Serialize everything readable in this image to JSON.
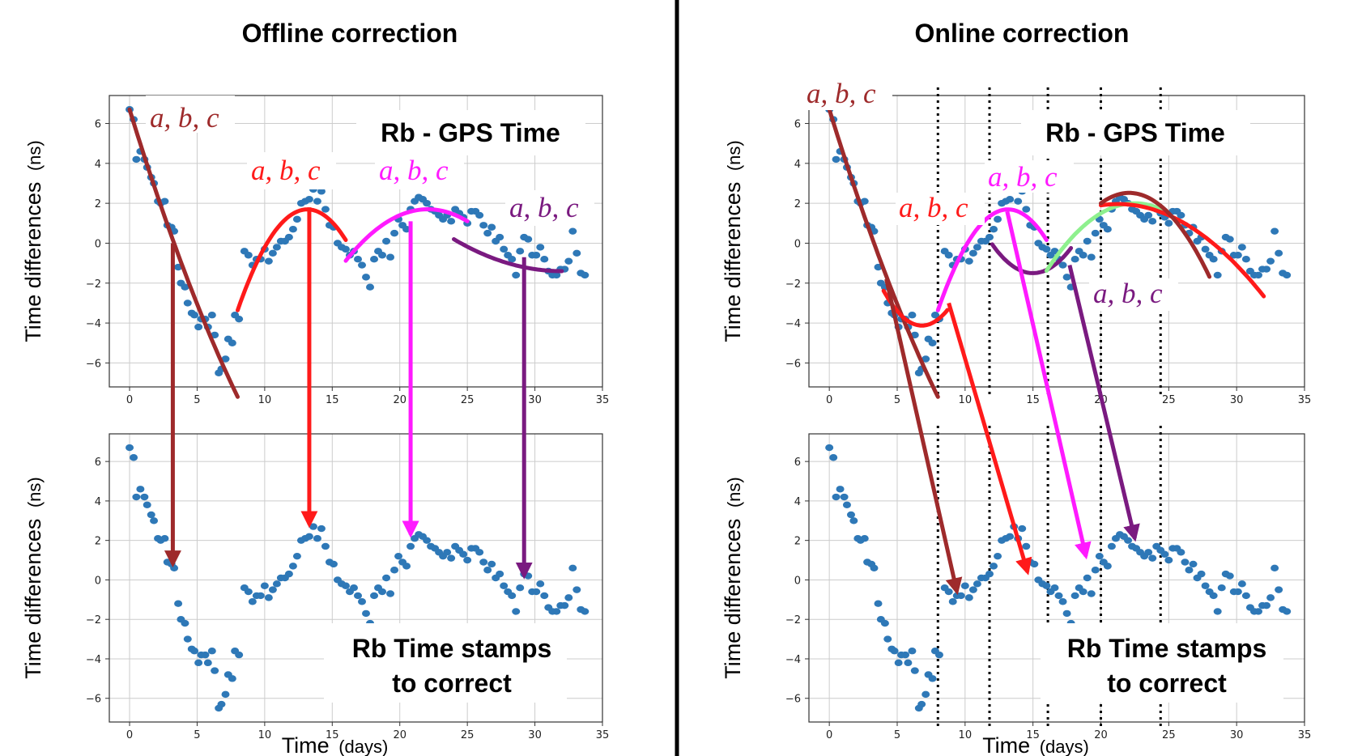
{
  "titles": {
    "left": "Offline correction",
    "right": "Online correction"
  },
  "labels": {
    "ylabel": "Time differences",
    "yunit": "(ns)",
    "xlabel": "Time",
    "xunit": "(days)",
    "top_box": "Rb - GPS Time",
    "bottom_box_line1": "Rb Time stamps",
    "bottom_box_line2": "to correct",
    "param": "a, b, c"
  },
  "colors": {
    "points": "#2e78b7",
    "brown": "#9e2a2b",
    "red": "#ff1a1a",
    "magenta": "#ff1aff",
    "purple": "#7a1a80",
    "lightgreen": "#8ef08e",
    "divider": "#000000"
  },
  "chart_data": [
    {
      "type": "scatter",
      "title": "Offline correction — Rb - GPS Time",
      "xlabel": "Time (days)",
      "ylabel": "Time differences (ns)",
      "xlim": [
        -1.5,
        35
      ],
      "ylim": [
        -7.2,
        7.4
      ],
      "xticks": [
        0,
        5,
        10,
        15,
        20,
        25,
        30,
        35
      ],
      "yticks": [
        -6,
        -4,
        -2,
        0,
        2,
        4,
        6
      ],
      "grid": true,
      "series": [
        {
          "name": "Rb - GPS Time",
          "x": [
            0,
            0.3,
            0.5,
            0.8,
            1.1,
            1.3,
            1.6,
            1.8,
            2.1,
            2.3,
            2.6,
            2.8,
            3.1,
            3.3,
            3.6,
            3.8,
            4.1,
            4.3,
            4.6,
            4.8,
            5.1,
            5.3,
            5.6,
            5.8,
            6.1,
            6.3,
            6.6,
            6.8,
            7.1,
            7.3,
            7.6,
            7.8,
            8.1,
            8.5,
            8.8,
            9.1,
            9.4,
            9.7,
            10,
            10.3,
            10.6,
            10.9,
            11.2,
            11.5,
            11.8,
            12.1,
            12.4,
            12.7,
            13,
            13.3,
            13.6,
            13.9,
            14.2,
            14.5,
            14.8,
            15.1,
            15.4,
            15.7,
            16,
            16.3,
            16.6,
            16.9,
            17.2,
            17.5,
            17.8,
            18.1,
            18.4,
            18.7,
            19,
            19.3,
            19.6,
            19.9,
            20.2,
            20.5,
            20.8,
            21.1,
            21.4,
            21.7,
            22,
            22.3,
            22.6,
            22.9,
            23.2,
            23.5,
            23.8,
            24.1,
            24.4,
            24.7,
            25,
            25.3,
            25.6,
            25.9,
            26.2,
            26.5,
            26.8,
            27.1,
            27.4,
            27.7,
            28,
            28.3,
            28.6,
            28.9,
            29.2,
            29.5,
            29.8,
            30.1,
            30.4,
            30.7,
            31,
            31.3,
            31.6,
            31.9,
            32.2,
            32.5,
            32.8,
            33.1,
            33.4,
            33.7
          ],
          "y": [
            6.7,
            6.2,
            4.2,
            4.6,
            4.2,
            3.8,
            3.3,
            3,
            2.1,
            2,
            2.1,
            0.9,
            0.8,
            0.6,
            -1.2,
            -2,
            -2.2,
            -3,
            -3.5,
            -3.6,
            -4.2,
            -3.8,
            -3.8,
            -4.2,
            -3.6,
            -4.6,
            -6.5,
            -6.3,
            -5.8,
            -4.8,
            -5,
            -3.6,
            -3.8,
            -0.4,
            -0.6,
            -1.1,
            -0.8,
            -0.8,
            -0.3,
            -0.9,
            -0.5,
            -0.2,
            0.1,
            0.1,
            0.3,
            0.7,
            1.2,
            2,
            2.1,
            2.2,
            2.7,
            2.1,
            2.6,
            1.7,
            0.9,
            0.8,
            0.0,
            -0.2,
            -0.3,
            -0.6,
            -0.4,
            -0.8,
            -1.1,
            -1.7,
            -2.2,
            -0.8,
            -0.4,
            -0.6,
            0.1,
            -0.7,
            0.5,
            1.2,
            0.9,
            0.7,
            1.7,
            2.1,
            2.3,
            2.2,
            2.0,
            1.7,
            1.6,
            1.4,
            1.2,
            1.4,
            1.1,
            1.7,
            1.5,
            1.3,
            1.0,
            1.6,
            1.6,
            1.4,
            0.9,
            0.5,
            0.8,
            0.1,
            0.3,
            -0.3,
            -0.6,
            -0.8,
            -1.6,
            -0.4,
            0.3,
            0.2,
            -0.6,
            -0.6,
            -0.2,
            -0.8,
            -1.4,
            -1.6,
            -1.6,
            -1.3,
            -1.3,
            -0.9,
            0.6,
            -0.5,
            -1.5,
            -1.6
          ]
        }
      ],
      "fits": [
        {
          "name": "brown fit",
          "color": "brown",
          "x": [
            0,
            8
          ],
          "coeffs": [
            0.05,
            -2.2,
            6.7
          ]
        },
        {
          "name": "red fit",
          "color": "red",
          "x": [
            8,
            16
          ],
          "coeffs": [
            -0.19,
            5.0,
            -31.2
          ]
        },
        {
          "name": "magenta fit",
          "color": "magenta",
          "x": [
            16,
            25
          ],
          "coeffs": [
            -0.07,
            3.09,
            -32.4
          ]
        },
        {
          "name": "purple fit",
          "color": "purple",
          "x": [
            24,
            32
          ],
          "coeffs": [
            0.025,
            -1.6,
            24.2
          ]
        }
      ]
    },
    {
      "type": "scatter",
      "title": "Offline correction — Rb Time stamps to correct",
      "xlabel": "Time (days)",
      "ylabel": "Time differences (ns)",
      "xlim": [
        -1.5,
        35
      ],
      "ylim": [
        -7.2,
        7.4
      ],
      "xticks": [
        0,
        5,
        10,
        15,
        20,
        25,
        30,
        35
      ],
      "yticks": [
        -6,
        -4,
        -2,
        0,
        2,
        4,
        6
      ],
      "grid": true,
      "series": [
        {
          "name": "Rb Time stamps",
          "same_as": "Rb - GPS Time"
        }
      ]
    },
    {
      "type": "scatter",
      "title": "Online correction — Rb - GPS Time",
      "xlabel": "Time (days)",
      "ylabel": "Time differences (ns)",
      "xlim": [
        -1.5,
        35
      ],
      "ylim": [
        -7.2,
        7.4
      ],
      "xticks": [
        0,
        5,
        10,
        15,
        20,
        25,
        30,
        35
      ],
      "yticks": [
        -6,
        -4,
        -2,
        0,
        2,
        4,
        6
      ],
      "grid": true,
      "vlines": [
        8,
        11.8,
        16.1,
        20,
        24.4
      ],
      "series": [
        {
          "name": "Rb - GPS Time",
          "same_as": "Rb - GPS Time"
        }
      ],
      "fits": [
        {
          "name": "brown fit",
          "color": "brown",
          "x": [
            0,
            8
          ],
          "coeffs": [
            0.05,
            -2.2,
            6.7
          ]
        },
        {
          "name": "red fit 1",
          "color": "red",
          "x": [
            4,
            8.7
          ],
          "coeffs": [
            0.22,
            -3.0,
            6.1
          ]
        },
        {
          "name": "magenta fit",
          "color": "magenta",
          "x": [
            8,
            16
          ],
          "coeffs": [
            -0.19,
            5.0,
            -31.2
          ]
        },
        {
          "name": "purple fit",
          "color": "purple",
          "x": [
            12,
            17.8
          ],
          "coeffs": [
            0.16,
            -4.8,
            34.5
          ]
        },
        {
          "name": "light green fit",
          "color": "lightgreen",
          "x": [
            16,
            24.4
          ],
          "coeffs": [
            -0.08,
            3.6,
            -38.5
          ]
        },
        {
          "name": "red fit 2",
          "color": "red",
          "x": [
            20,
            32
          ],
          "coeffs": [
            -0.04,
            1.7,
            -16.1
          ]
        },
        {
          "name": "brown fit 2",
          "color": "brown",
          "x": [
            20,
            28
          ],
          "coeffs": [
            -0.12,
            5.3,
            -56
          ]
        }
      ]
    },
    {
      "type": "scatter",
      "title": "Online correction — Rb Time stamps to correct",
      "xlabel": "Time (days)",
      "ylabel": "Time differences (ns)",
      "xlim": [
        -1.5,
        35
      ],
      "ylim": [
        -7.2,
        7.4
      ],
      "xticks": [
        0,
        5,
        10,
        15,
        20,
        25,
        30,
        35
      ],
      "yticks": [
        -6,
        -4,
        -2,
        0,
        2,
        4,
        6
      ],
      "grid": true,
      "vlines": [
        8,
        11.8,
        16.1,
        20,
        24.4
      ],
      "series": [
        {
          "name": "Rb Time stamps",
          "same_as": "Rb - GPS Time"
        }
      ]
    }
  ],
  "arrows": {
    "offline": [
      {
        "color": "brown",
        "from": [
          3.2,
          0
        ],
        "to": [
          3.2,
          0.8
        ]
      },
      {
        "color": "red",
        "from": [
          13.3,
          1.8
        ],
        "to": [
          13.3,
          2.8
        ]
      },
      {
        "color": "magenta",
        "from": [
          20.8,
          1.1
        ],
        "to": [
          20.8,
          2.3
        ]
      },
      {
        "color": "purple",
        "from": [
          29.2,
          -0.7
        ],
        "to": [
          29.2,
          0.2
        ]
      }
    ],
    "online": [
      {
        "color": "brown",
        "from": [
          4.2,
          -1.8
        ],
        "to": [
          9.4,
          -0.6
        ]
      },
      {
        "color": "red",
        "from": [
          8.8,
          -3.0
        ],
        "to": [
          14.6,
          0.4
        ]
      },
      {
        "color": "magenta",
        "from": [
          13.1,
          1.6
        ],
        "to": [
          18.9,
          1.2
        ]
      },
      {
        "color": "purple",
        "from": [
          17.7,
          -1.1
        ],
        "to": [
          22.5,
          2.1
        ]
      }
    ]
  }
}
